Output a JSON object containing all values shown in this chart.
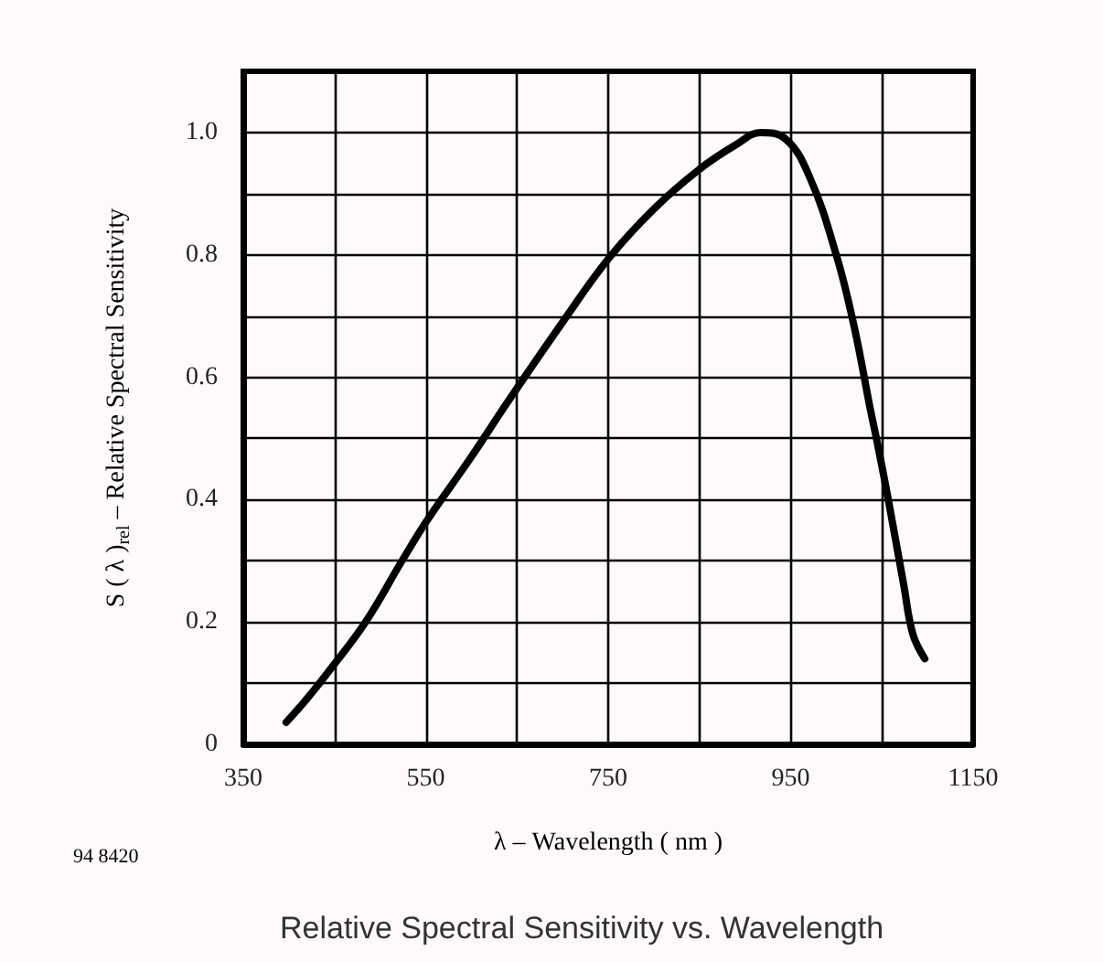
{
  "chart_data": {
    "type": "line",
    "title": "Relative Spectral Sensitivity vs. Wavelength",
    "xlabel": "λ – Wavelength ( nm )",
    "ylabel": "S ( λ )$_{rel}$ – Relative Spectral Sensitivity",
    "annotations": [
      "94 8420"
    ],
    "x": [
      397,
      420,
      444,
      484,
      524,
      551,
      600,
      640,
      700,
      751,
      800,
      850,
      890,
      917,
      944,
      970,
      1000,
      1020,
      1037,
      1044,
      1057,
      1074,
      1084,
      1097
    ],
    "series": [
      {
        "color": "#000000",
        "values": [
          0.036,
          0.075,
          0.12,
          0.2,
          0.3,
          0.365,
          0.47,
          0.56,
          0.69,
          0.795,
          0.875,
          0.94,
          0.98,
          1.0,
          0.99,
          0.93,
          0.8,
          0.68,
          0.55,
          0.5,
          0.4,
          0.26,
          0.18,
          0.14
        ]
      }
    ],
    "xlim": [
      350,
      1150
    ],
    "xticks": [
      350,
      {
        "value": 450,
        "label": null
      },
      550,
      {
        "value": 650,
        "label": null
      },
      750,
      {
        "value": 850,
        "label": null
      },
      950,
      {
        "value": 1050,
        "label": null
      },
      1150
    ],
    "ylim": [
      0,
      1.1
    ],
    "yticks": [
      {
        "value": 0,
        "label": "0"
      },
      {
        "value": 0.1,
        "label": null
      },
      {
        "value": 0.2,
        "label": "0.2"
      },
      {
        "value": 0.3,
        "label": null
      },
      {
        "value": 0.4,
        "label": "0.4"
      },
      {
        "value": 0.5,
        "label": null
      },
      {
        "value": 0.6,
        "label": "0.6"
      },
      {
        "value": 0.7,
        "label": null
      },
      {
        "value": 0.8,
        "label": "0.8"
      },
      {
        "value": 0.9,
        "label": null
      },
      {
        "value": 1.0,
        "label": "1.0"
      }
    ],
    "grid": true,
    "marker": "none",
    "line_style": "solid"
  }
}
